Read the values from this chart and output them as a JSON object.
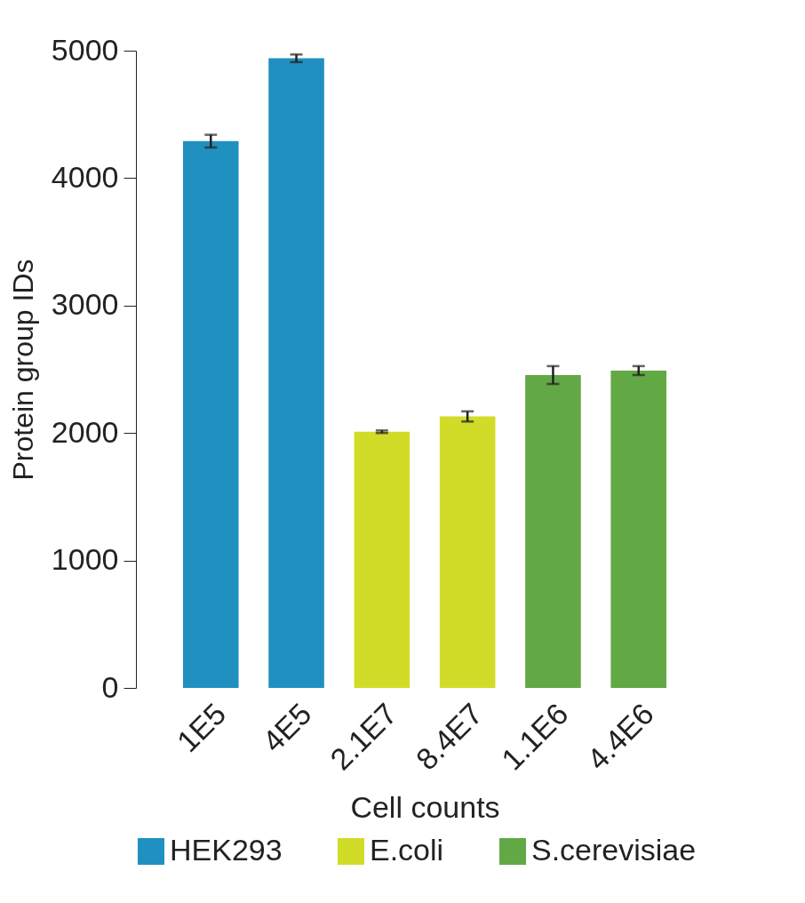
{
  "chart_data": {
    "type": "bar",
    "xlabel": "Cell counts",
    "ylabel": "Protein group IDs",
    "categories": [
      "1E5",
      "4E5",
      "2.1E7",
      "8.4E7",
      "1.1E6",
      "4.4E6"
    ],
    "series": [
      {
        "name": "HEK293",
        "color": "#2090c0",
        "values": [
          4290,
          4940,
          null,
          null,
          null,
          null
        ],
        "errors": [
          50,
          30,
          null,
          null,
          null,
          null
        ]
      },
      {
        "name": "E.coli",
        "color": "#d0dc28",
        "values": [
          null,
          null,
          2010,
          2130,
          null,
          null
        ],
        "errors": [
          null,
          null,
          10,
          40,
          null,
          null
        ]
      },
      {
        "name": "S.cerevisiae",
        "color": "#62a844",
        "values": [
          null,
          null,
          null,
          null,
          2455,
          2490
        ],
        "errors": [
          null,
          null,
          null,
          null,
          70,
          35
        ]
      }
    ],
    "ylim": [
      0,
      5000
    ],
    "yticks": [
      0,
      1000,
      2000,
      3000,
      4000,
      5000
    ],
    "grid": false,
    "legend": "bottom"
  }
}
